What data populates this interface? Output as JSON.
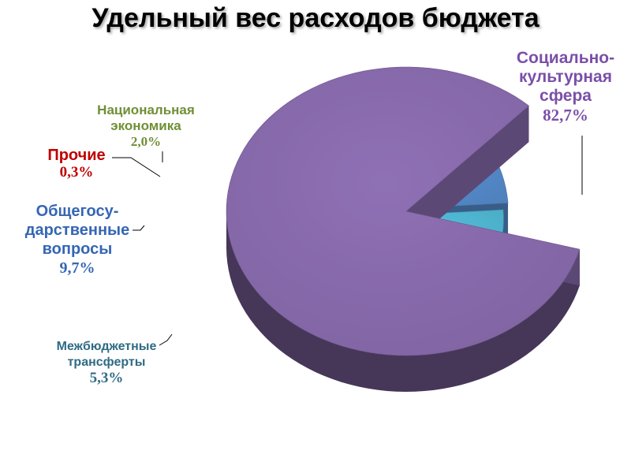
{
  "chart_data": {
    "type": "pie",
    "title": "Удельный вес расходов бюджета",
    "slices": [
      {
        "label": "Социально-культурная сфера",
        "value": 82.7,
        "value_label": "82,7%",
        "color": "#8064a2"
      },
      {
        "label": "Межбюджетные трансферты",
        "value": 5.3,
        "value_label": "5,3%",
        "color": "#4bacc6"
      },
      {
        "label": "Общегосударственные вопросы",
        "value": 9.7,
        "value_label": "9,7%",
        "color": "#4f81bd"
      },
      {
        "label": "Прочие",
        "value": 0.3,
        "value_label": "0,3%",
        "color": "#c0504d"
      },
      {
        "label": "Национальная экономика",
        "value": 2.0,
        "value_label": "2,0%",
        "color": "#9bbb59"
      }
    ]
  },
  "labels": {
    "social": {
      "line1": "Социально-",
      "line2": "культурная",
      "line3": "сфера",
      "pct": "82,7%"
    },
    "transfers": {
      "line1": "Межбюджетные",
      "line2": "трансферты",
      "pct": "5,3%"
    },
    "general": {
      "line1": "Общегосу-",
      "line2": "дарственные",
      "line3": "вопросы",
      "pct": "9,7%"
    },
    "other": {
      "line1": "Прочие",
      "pct": "0,3%"
    },
    "economy": {
      "line1": "Национальная",
      "line2": "экономика",
      "pct": "2,0%"
    }
  }
}
